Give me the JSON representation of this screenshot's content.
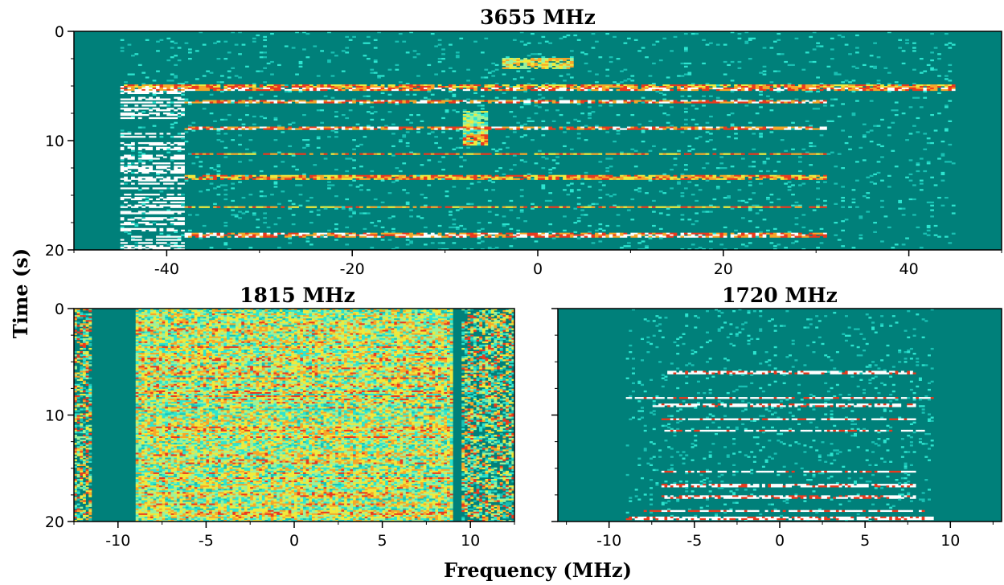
{
  "colors": {
    "background": "#00807a",
    "colormap": [
      "#00807a",
      "#19c1b4",
      "#2de5d0",
      "#9cf29b",
      "#f0ea3c",
      "#f7a629",
      "#ea3a1e",
      "#ffffff"
    ]
  },
  "axis_titles": {
    "y": "Time (s)",
    "x": "Frequency (MHz)"
  },
  "chart_data": [
    {
      "type": "heatmap",
      "title": "3655 MHz",
      "xlim": [
        -50,
        50
      ],
      "ylim": [
        0,
        20
      ],
      "y_inverted": true,
      "xticks": [
        -40,
        -20,
        0,
        20,
        40
      ],
      "xtick_labels": [
        "-40",
        "-20",
        "0",
        "20",
        "40"
      ],
      "yticks": [
        0,
        10,
        20
      ],
      "ytick_labels": [
        "0",
        "10",
        "20"
      ],
      "occupied_band_mhz": [
        -45,
        45
      ],
      "bursts": [
        {
          "t_start": 4.9,
          "t_end": 5.1,
          "f_start": -45,
          "f_end": 45,
          "intensity": 5
        },
        {
          "t_start": 5.2,
          "t_end": 5.4,
          "f_start": -45,
          "f_end": 45,
          "intensity": 6
        },
        {
          "t_start": 6.3,
          "t_end": 6.5,
          "f_start": -38,
          "f_end": 31,
          "intensity": 6
        },
        {
          "t_start": 8.7,
          "t_end": 8.95,
          "f_start": -38,
          "f_end": 31,
          "intensity": 6
        },
        {
          "t_start": 11.1,
          "t_end": 11.3,
          "f_start": -38,
          "f_end": 31,
          "intensity": 5
        },
        {
          "t_start": 13.2,
          "t_end": 13.5,
          "f_start": -38,
          "f_end": 31,
          "intensity": 5
        },
        {
          "t_start": 16.0,
          "t_end": 16.2,
          "f_start": -38,
          "f_end": 31,
          "intensity": 5
        },
        {
          "t_start": 18.5,
          "t_end": 18.9,
          "f_start": -38,
          "f_end": 31,
          "intensity": 6
        },
        {
          "t_start": 7.3,
          "t_end": 10.4,
          "f_start": -8,
          "f_end": -5.5,
          "intensity": 3
        },
        {
          "t_start": 9.4,
          "t_end": 10.4,
          "f_start": -8,
          "f_end": -5.5,
          "intensity": 5
        },
        {
          "t_start": 2.4,
          "t_end": 3.4,
          "f_start": -4,
          "f_end": 4,
          "intensity": 4
        }
      ]
    },
    {
      "type": "heatmap",
      "title": "1815 MHz",
      "xlim": [
        -12.5,
        12.5
      ],
      "ylim": [
        0,
        20
      ],
      "y_inverted": true,
      "xticks": [
        -10,
        -5,
        0,
        5,
        10
      ],
      "xtick_labels": [
        "-10",
        "-5",
        "0",
        "5",
        "10"
      ],
      "yticks": [
        0,
        10,
        20
      ],
      "ytick_labels": [
        "0",
        "10",
        "20"
      ],
      "occupied_band_mhz": [
        -9,
        9
      ],
      "edge_bands_mhz": [
        [
          -12.5,
          -11.5
        ],
        [
          9.5,
          12.5
        ]
      ],
      "bursts": []
    },
    {
      "type": "heatmap",
      "title": "1720 MHz",
      "xlim": [
        -13,
        13
      ],
      "ylim": [
        0,
        20
      ],
      "y_inverted": true,
      "xticks": [
        -10,
        -5,
        0,
        5,
        10
      ],
      "xtick_labels": [
        "-10",
        "-5",
        "0",
        "5",
        "10"
      ],
      "yticks": [
        0,
        10,
        20
      ],
      "ytick_labels": [
        "0",
        "10",
        "20"
      ],
      "occupied_band_mhz": [
        -9,
        9
      ],
      "bursts": [
        {
          "t_start": 5.8,
          "t_end": 6.1,
          "f_start": -6.5,
          "f_end": 8,
          "intensity": 7
        },
        {
          "t_start": 8.3,
          "t_end": 8.5,
          "f_start": -9,
          "f_end": 9,
          "intensity": 7
        },
        {
          "t_start": 9.0,
          "t_end": 9.2,
          "f_start": -7.5,
          "f_end": 8,
          "intensity": 7
        },
        {
          "t_start": 10.3,
          "t_end": 10.45,
          "f_start": -7,
          "f_end": 8,
          "intensity": 7
        },
        {
          "t_start": 11.4,
          "t_end": 11.6,
          "f_start": -7,
          "f_end": 8.5,
          "intensity": 7
        },
        {
          "t_start": 15.2,
          "t_end": 15.4,
          "f_start": -7,
          "f_end": 8,
          "intensity": 7
        },
        {
          "t_start": 16.5,
          "t_end": 16.7,
          "f_start": -7,
          "f_end": 8,
          "intensity": 7
        },
        {
          "t_start": 17.6,
          "t_end": 17.8,
          "f_start": -7,
          "f_end": 8,
          "intensity": 7
        },
        {
          "t_start": 18.9,
          "t_end": 19.1,
          "f_start": -8,
          "f_end": 8.5,
          "intensity": 7
        },
        {
          "t_start": 19.5,
          "t_end": 19.8,
          "f_start": -9,
          "f_end": 9,
          "intensity": 7
        }
      ]
    }
  ]
}
